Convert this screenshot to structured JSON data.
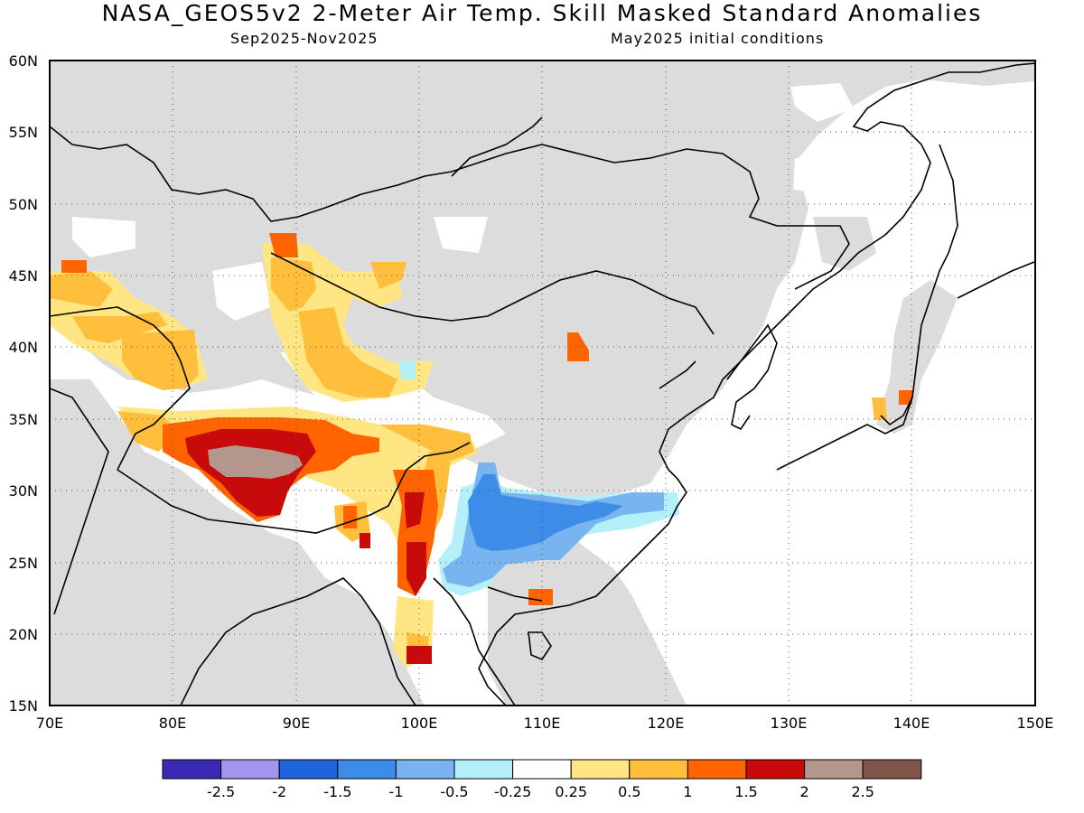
{
  "header": {
    "title": "NASA_GEOS5v2 2-Meter Air Temp. Skill Masked Standard Anomalies",
    "period": "Sep2025-Nov2025",
    "init": "May2025 initial conditions"
  },
  "map": {
    "lon_labels": [
      "70E",
      "80E",
      "90E",
      "100E",
      "110E",
      "120E",
      "130E",
      "140E",
      "150E"
    ],
    "lat_labels": [
      "15N",
      "20N",
      "25N",
      "30N",
      "35N",
      "40N",
      "45N",
      "50N",
      "55N",
      "60N"
    ],
    "grid": "dotted",
    "colors": {
      "mask_gray": "#dcdcdc",
      "neutral": "#ffffff",
      "coast": "#000000"
    }
  },
  "legend": {
    "colors": [
      "#3b2ab4",
      "#a096f0",
      "#1e64dc",
      "#3c8ce8",
      "#78b4f0",
      "#b4f0fa",
      "#ffffff",
      "#ffe682",
      "#ffbe3c",
      "#ff6400",
      "#c80a0a",
      "#b4968c",
      "#82554b"
    ],
    "labels": [
      "-2.5",
      "-2",
      "-1.5",
      "-1",
      "-0.5",
      "-0.25",
      "0.25",
      "0.5",
      "1",
      "1.5",
      "2",
      "2.5"
    ]
  }
}
